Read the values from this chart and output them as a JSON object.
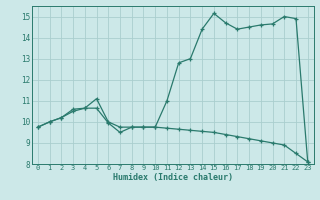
{
  "xlabel": "Humidex (Indice chaleur)",
  "xlim": [
    -0.5,
    23.5
  ],
  "ylim": [
    8,
    15.5
  ],
  "yticks": [
    8,
    9,
    10,
    11,
    12,
    13,
    14,
    15
  ],
  "xticks": [
    0,
    1,
    2,
    3,
    4,
    5,
    6,
    7,
    8,
    9,
    10,
    11,
    12,
    13,
    14,
    15,
    16,
    17,
    18,
    19,
    20,
    21,
    22,
    23
  ],
  "line1_x": [
    0,
    1,
    2,
    3,
    4,
    5,
    6,
    7,
    8,
    9,
    10,
    11,
    12,
    13,
    14,
    15,
    16,
    17,
    18,
    19,
    20,
    21,
    22,
    23
  ],
  "line1_y": [
    9.75,
    10.0,
    10.2,
    10.6,
    10.65,
    11.1,
    10.0,
    9.75,
    9.75,
    9.75,
    9.75,
    11.0,
    12.8,
    13.0,
    14.4,
    15.15,
    14.7,
    14.4,
    14.5,
    14.6,
    14.65,
    15.0,
    14.9,
    8.1
  ],
  "line2_x": [
    0,
    1,
    2,
    3,
    4,
    5,
    6,
    7,
    8,
    9,
    10,
    11,
    12,
    13,
    14,
    15,
    16,
    17,
    18,
    19,
    20,
    21,
    22,
    23
  ],
  "line2_y": [
    9.75,
    10.0,
    10.2,
    10.5,
    10.65,
    10.65,
    9.95,
    9.5,
    9.75,
    9.75,
    9.75,
    9.7,
    9.65,
    9.6,
    9.55,
    9.5,
    9.4,
    9.3,
    9.2,
    9.1,
    9.0,
    8.9,
    8.5,
    8.1
  ],
  "line_color": "#2a7a6d",
  "bg_color": "#cce8e8",
  "grid_color": "#aacece",
  "marker": "+",
  "marker_size": 3.5,
  "lw": 0.9
}
